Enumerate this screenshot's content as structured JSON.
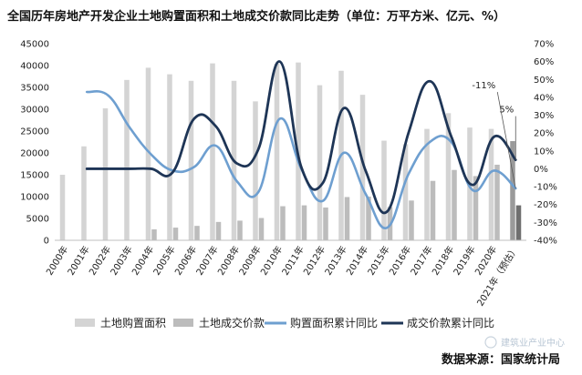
{
  "chart_data": {
    "type": "bar+line",
    "title": "全国历年房地产开发企业土地购置面积和土地成交价款同比走势（单位：万平方米、亿元、%）",
    "categories": [
      "2000年",
      "2001年",
      "2002年",
      "2003年",
      "2004年",
      "2005年",
      "2006年",
      "2007年",
      "2008年",
      "2009年",
      "2010年",
      "2011年",
      "2012年",
      "2013年",
      "2014年",
      "2015年",
      "2016年",
      "2017年",
      "2018年",
      "2019年",
      "2020年",
      "2021年（预估）"
    ],
    "y_left": {
      "min": 0,
      "max": 45000,
      "step": 5000,
      "ticks": [
        "0",
        "5000",
        "10000",
        "15000",
        "20000",
        "25000",
        "30000",
        "35000",
        "40000",
        "45000"
      ]
    },
    "y_right": {
      "min": -40,
      "max": 70,
      "step": 10,
      "ticks": [
        "-40%",
        "-30%",
        "-20%",
        "-10%",
        "0%",
        "10%",
        "20%",
        "30%",
        "40%",
        "50%",
        "60%",
        "70%"
      ]
    },
    "series": [
      {
        "name": "土地购置面积",
        "type": "bar",
        "axis": "left",
        "color": "#d4d4d4",
        "values": [
          15000,
          21500,
          30200,
          36700,
          39500,
          38000,
          36500,
          40500,
          36500,
          31800,
          40400,
          40700,
          35500,
          38800,
          33300,
          22800,
          22000,
          25500,
          29100,
          25800,
          25500,
          22700
        ]
      },
      {
        "name": "土地成交价款",
        "type": "bar",
        "axis": "left",
        "color": "#bcbcbc",
        "values": [
          null,
          null,
          null,
          null,
          2500,
          2900,
          3300,
          4200,
          4500,
          5100,
          7800,
          8000,
          7500,
          9900,
          10000,
          7600,
          9100,
          13600,
          16100,
          14700,
          17300,
          8000
        ]
      },
      {
        "name": "购置面积累计同比",
        "type": "line",
        "axis": "right",
        "color": "#6e9fd0",
        "values": [
          null,
          43,
          41,
          23,
          8,
          -1,
          1,
          13,
          -7,
          -13,
          28,
          0,
          -18,
          9,
          -14,
          -33,
          -3,
          15,
          15,
          -12,
          -1,
          -11
        ]
      },
      {
        "name": "成交价款累计同比",
        "type": "line",
        "axis": "right",
        "color": "#1e3556",
        "values": [
          null,
          0,
          0,
          0,
          0,
          -2,
          28,
          24,
          3,
          11,
          60,
          1,
          -8,
          34,
          -1,
          -24,
          20,
          49,
          18,
          -9,
          18,
          5
        ]
      }
    ],
    "annotations": [
      {
        "text": "5%",
        "index": 21,
        "series": 3
      },
      {
        "text": "-11%",
        "index": 21,
        "series": 2
      }
    ],
    "source": "数据来源：国家统计局",
    "watermark": "建筑业产业中心"
  }
}
